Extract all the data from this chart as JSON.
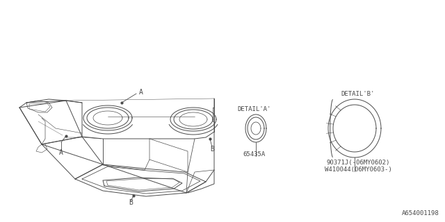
{
  "bg_color": "#ffffff",
  "line_color": "#4a4a4a",
  "part_label_A": "65435A",
  "part_label_B": "90371J(-06MY0602)\nW410044(06MY0603-)",
  "detail_A": "DETAIL'A'",
  "detail_B": "DETAIL'B'",
  "diagram_id": "A654001198",
  "font_size_part": 6.5,
  "font_size_detail": 6.5,
  "font_size_id": 6.5
}
